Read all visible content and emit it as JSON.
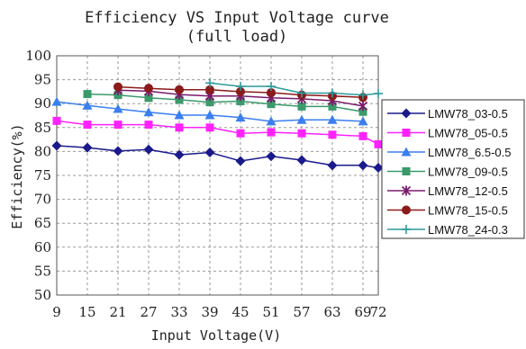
{
  "chart_data": {
    "type": "line",
    "title": "Efficiency VS Input Voltage curve",
    "subtitle": "(full load)",
    "xlabel": "Input Voltage(V)",
    "ylabel": "Efficiency(%)",
    "x": [
      9,
      15,
      21,
      27,
      33,
      39,
      45,
      51,
      57,
      63,
      69,
      72
    ],
    "x_tick_labels": [
      "9",
      "15",
      "21",
      "27",
      "33",
      "39",
      "45",
      "51",
      "57",
      "63",
      "69",
      "72"
    ],
    "ylim": [
      50,
      100
    ],
    "y_ticks": [
      50,
      55,
      60,
      65,
      70,
      75,
      80,
      85,
      90,
      95,
      100
    ],
    "grid": true,
    "legend_position": "right",
    "series": [
      {
        "name": "LMW78_03-0.5",
        "color": "#1a1a8c",
        "marker": "diamond",
        "points": [
          [
            9,
            81.2
          ],
          [
            15,
            80.8
          ],
          [
            21,
            80.1
          ],
          [
            27,
            80.4
          ],
          [
            33,
            79.3
          ],
          [
            39,
            79.8
          ],
          [
            45,
            78
          ],
          [
            51,
            79
          ],
          [
            57,
            78.2
          ],
          [
            63,
            77.1
          ],
          [
            69,
            77.1
          ],
          [
            72,
            76.6
          ]
        ]
      },
      {
        "name": "LMW78_05-0.5",
        "color": "#ff22ff",
        "marker": "square",
        "points": [
          [
            9,
            86.4
          ],
          [
            15,
            85.6
          ],
          [
            21,
            85.6
          ],
          [
            27,
            85.6
          ],
          [
            33,
            85
          ],
          [
            39,
            85
          ],
          [
            45,
            83.8
          ],
          [
            51,
            84
          ],
          [
            57,
            83.8
          ],
          [
            63,
            83.5
          ],
          [
            69,
            83.2
          ],
          [
            72,
            81.5
          ]
        ]
      },
      {
        "name": "LMW78_6.5-0.5",
        "color": "#3a7ff0",
        "marker": "triangle",
        "points": [
          [
            9,
            90.4
          ],
          [
            15,
            89.6
          ],
          [
            21,
            88.9
          ],
          [
            27,
            88.2
          ],
          [
            33,
            87.6
          ],
          [
            39,
            87.6
          ],
          [
            45,
            87.1
          ],
          [
            51,
            86.3
          ],
          [
            57,
            86.6
          ],
          [
            63,
            86.6
          ],
          [
            69,
            86.3
          ]
        ]
      },
      {
        "name": "LMW78_09-0.5",
        "color": "#3a9a6a",
        "marker": "square",
        "points": [
          [
            15,
            92
          ],
          [
            21,
            91.8
          ],
          [
            27,
            91.2
          ],
          [
            33,
            90.8
          ],
          [
            39,
            90.3
          ],
          [
            45,
            90.5
          ],
          [
            51,
            89.9
          ],
          [
            57,
            89.4
          ],
          [
            63,
            89.4
          ],
          [
            69,
            88.3
          ]
        ]
      },
      {
        "name": "LMW78_12-0.5",
        "color": "#7a1a6a",
        "marker": "star",
        "points": [
          [
            21,
            92.8
          ],
          [
            27,
            92.6
          ],
          [
            33,
            91.9
          ],
          [
            39,
            91.6
          ],
          [
            45,
            91.6
          ],
          [
            51,
            91.2
          ],
          [
            57,
            91
          ],
          [
            63,
            90.6
          ],
          [
            69,
            89.5
          ]
        ]
      },
      {
        "name": "LMW78_15-0.5",
        "color": "#8b1a1a",
        "marker": "circle",
        "points": [
          [
            21,
            93.5
          ],
          [
            27,
            93.2
          ],
          [
            33,
            92.9
          ],
          [
            39,
            92.9
          ],
          [
            45,
            92.5
          ],
          [
            51,
            92.3
          ],
          [
            57,
            91.8
          ],
          [
            63,
            91.6
          ],
          [
            69,
            91.3
          ]
        ]
      },
      {
        "name": "LMW78_24-0.3",
        "color": "#2a9a9a",
        "marker": "plus",
        "points": [
          [
            39,
            94.3
          ],
          [
            45,
            93.6
          ],
          [
            51,
            93.6
          ],
          [
            57,
            92.2
          ],
          [
            63,
            92.2
          ],
          [
            69,
            91.8
          ],
          [
            72,
            92.1
          ]
        ]
      }
    ]
  }
}
